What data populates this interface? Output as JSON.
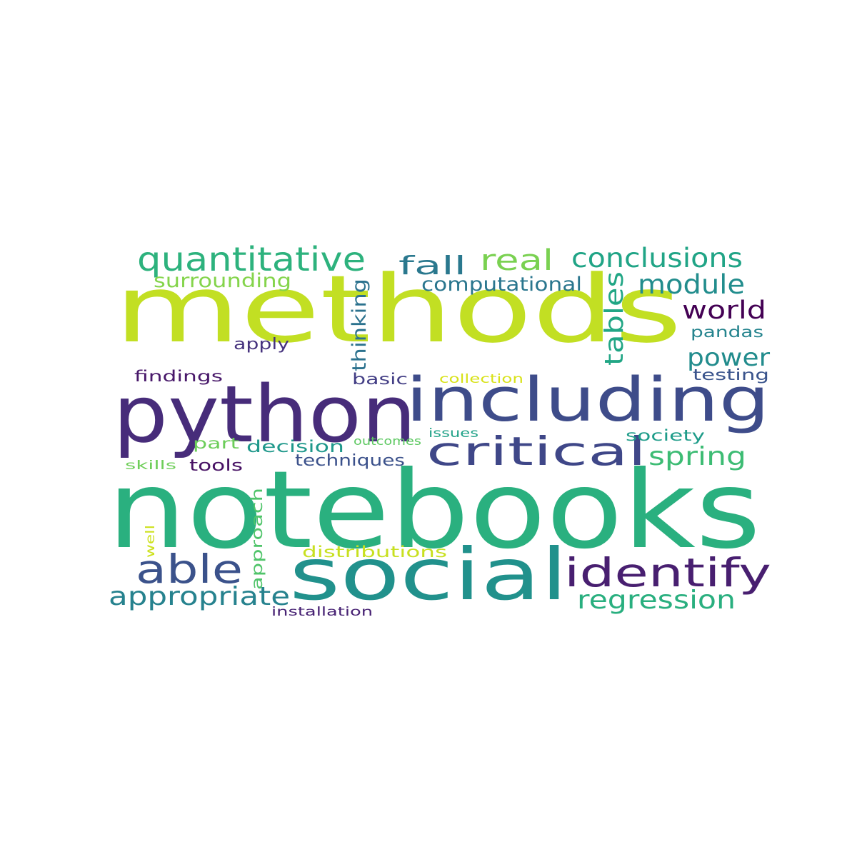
{
  "words": [
    {
      "text": "methods",
      "color": "#c2df23",
      "vertical": false
    },
    {
      "text": "notebooks",
      "color": "#2ab07f",
      "vertical": false
    },
    {
      "text": "python",
      "color": "#472c7a",
      "vertical": false
    },
    {
      "text": "including",
      "color": "#3e4c8a",
      "vertical": false
    },
    {
      "text": "social",
      "color": "#21918c",
      "vertical": false
    },
    {
      "text": "critical",
      "color": "#3f4788",
      "vertical": false
    },
    {
      "text": "identify",
      "color": "#481f70",
      "vertical": false
    },
    {
      "text": "able",
      "color": "#3b528b",
      "vertical": false
    },
    {
      "text": "quantitative",
      "color": "#2db27d",
      "vertical": false
    },
    {
      "text": "conclusions",
      "color": "#20a486",
      "vertical": false
    },
    {
      "text": "real",
      "color": "#7ad151",
      "vertical": false
    },
    {
      "text": "fall",
      "color": "#2a788e",
      "vertical": false
    },
    {
      "text": "module",
      "color": "#228d8d",
      "vertical": false
    },
    {
      "text": "appropriate",
      "color": "#26828e",
      "vertical": false
    },
    {
      "text": "regression",
      "color": "#29af7f",
      "vertical": false
    },
    {
      "text": "spring",
      "color": "#3dbc74",
      "vertical": false
    },
    {
      "text": "world",
      "color": "#440154",
      "vertical": false
    },
    {
      "text": "power",
      "color": "#228c8d",
      "vertical": false
    },
    {
      "text": "tables",
      "color": "#21a685",
      "vertical": true
    },
    {
      "text": "surrounding",
      "color": "#84d44b",
      "vertical": false
    },
    {
      "text": "thinking",
      "color": "#2c728e",
      "vertical": true
    },
    {
      "text": "computational",
      "color": "#2a768e",
      "vertical": false
    },
    {
      "text": "pandas",
      "color": "#25848e",
      "vertical": false
    },
    {
      "text": "apply",
      "color": "#46337e",
      "vertical": false
    },
    {
      "text": "findings",
      "color": "#48186a",
      "vertical": false
    },
    {
      "text": "basic",
      "color": "#433e85",
      "vertical": false
    },
    {
      "text": "collection",
      "color": "#d8e219",
      "vertical": false
    },
    {
      "text": "testing",
      "color": "#3a548c",
      "vertical": false
    },
    {
      "text": "decision",
      "color": "#1f988b",
      "vertical": false
    },
    {
      "text": "techniques",
      "color": "#3b518b",
      "vertical": false
    },
    {
      "text": "tools",
      "color": "#471164",
      "vertical": false
    },
    {
      "text": "part",
      "color": "#6ccd5a",
      "vertical": false
    },
    {
      "text": "outcomes",
      "color": "#5ec962",
      "vertical": false
    },
    {
      "text": "issues",
      "color": "#1fa187",
      "vertical": false
    },
    {
      "text": "society",
      "color": "#1e9c89",
      "vertical": false
    },
    {
      "text": "skills",
      "color": "#6ece58",
      "vertical": false
    },
    {
      "text": "approach",
      "color": "#50c46a",
      "vertical": true
    },
    {
      "text": "well",
      "color": "#cde11d",
      "vertical": true
    },
    {
      "text": "distributions",
      "color": "#c8e020",
      "vertical": false
    },
    {
      "text": "installation",
      "color": "#482374",
      "vertical": false
    }
  ]
}
